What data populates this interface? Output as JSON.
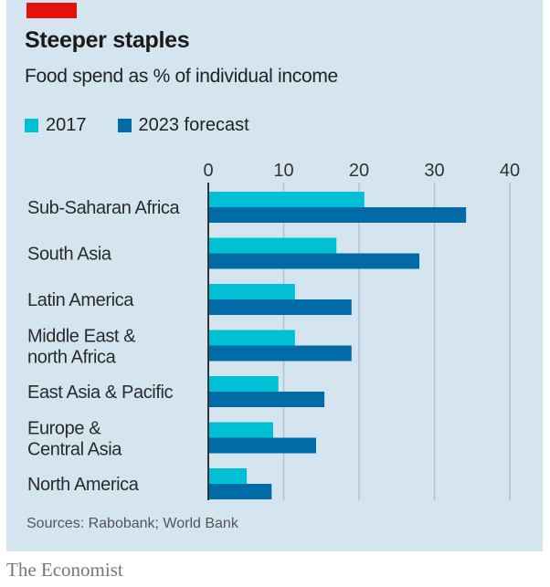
{
  "header": {
    "title": "Steeper staples",
    "subtitle": "Food spend as % of individual income"
  },
  "footer": {
    "source": "Sources: Rabobank; World Bank",
    "brand": "The Economist"
  },
  "colors": {
    "background": "#d4e5ef",
    "accent_red": "#e3120b",
    "series_2017": "#00c0d6",
    "series_2023": "#006ba6",
    "gridline": "#b4c4cf",
    "axis": "#333333"
  },
  "chart_data": {
    "type": "bar",
    "orientation": "horizontal",
    "title": "Steeper staples",
    "subtitle": "Food spend as % of individual income",
    "xlabel": "",
    "ylabel": "",
    "xlim": [
      0,
      40
    ],
    "xticks": [
      0,
      10,
      20,
      30,
      40
    ],
    "tick_position": "top",
    "grid": true,
    "legend_position": "top-left",
    "categories": [
      [
        "Sub-Saharan Africa"
      ],
      [
        "South Asia"
      ],
      [
        "Latin America"
      ],
      [
        "Middle East &",
        "north Africa"
      ],
      [
        "East Asia & Pacific"
      ],
      [
        "Europe &",
        "Central Asia"
      ],
      [
        "North America"
      ]
    ],
    "series": [
      {
        "name": "2017",
        "color": "#00c0d6",
        "values": [
          20.7,
          17.0,
          11.5,
          11.5,
          9.3,
          8.6,
          5.1
        ]
      },
      {
        "name": "2023 forecast",
        "color": "#006ba6",
        "values": [
          34.2,
          28.0,
          19.0,
          19.0,
          15.4,
          14.3,
          8.4
        ]
      }
    ],
    "source": "Sources: Rabobank; World Bank"
  }
}
